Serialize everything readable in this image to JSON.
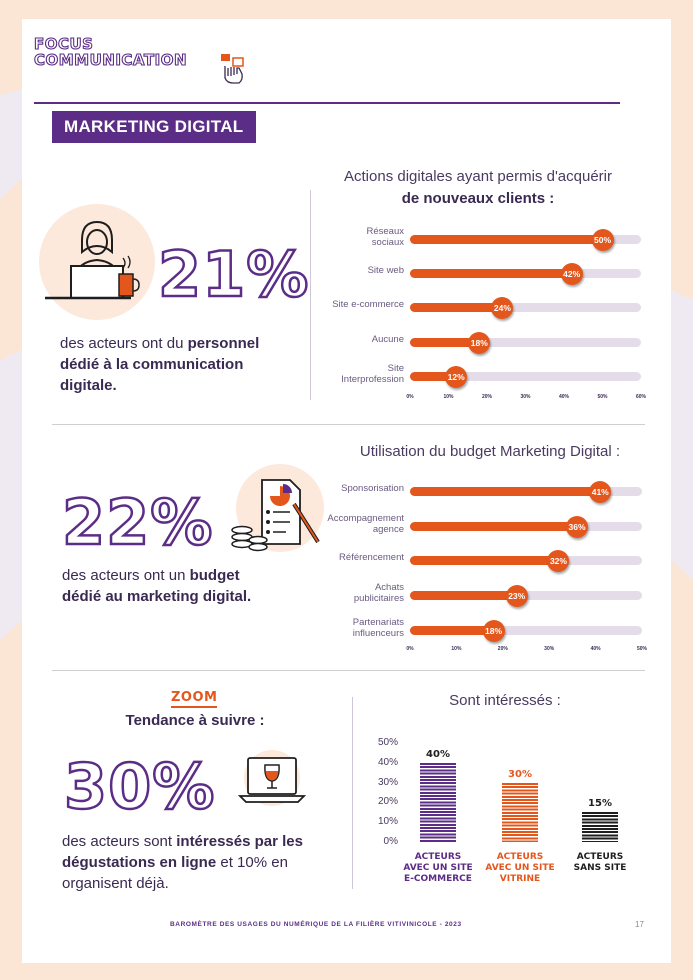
{
  "header": {
    "focus_line1": "FOCUS",
    "focus_line2": "COMMUNICATION"
  },
  "section_badge": "MARKETING DIGITAL",
  "stat1": {
    "value": "21%",
    "text_before": "des acteurs ont du ",
    "text_bold": "personnel dédié à la communication digitale."
  },
  "stat2": {
    "value": "22%",
    "text_before": "des acteurs ont un ",
    "text_bold": "budget dédié au marketing digital."
  },
  "zoom": {
    "label": "ZOOM",
    "subtitle": "Tendance à suivre :"
  },
  "stat3": {
    "value": "30%",
    "text_before": "des acteurs sont ",
    "text_bold": "intéressés par les dégustations en ligne",
    "text_after": " et 10% en organisent déjà."
  },
  "chart_data": [
    {
      "type": "bar",
      "orientation": "horizontal",
      "title_line1": "Actions digitales ayant permis d'acquérir",
      "title_line2": "de nouveaux clients :",
      "categories": [
        [
          "Réseaux",
          "sociaux"
        ],
        [
          "Site web"
        ],
        [
          "Site e-commerce"
        ],
        [
          "Aucune"
        ],
        [
          "Site",
          "Interprofession"
        ]
      ],
      "values": [
        50,
        42,
        24,
        18,
        12
      ],
      "value_labels": [
        "50%",
        "42%",
        "24%",
        "18%",
        "12%"
      ],
      "xlim": [
        0,
        60
      ],
      "x_ticks": [
        "0%",
        "10%",
        "20%",
        "30%",
        "40%",
        "50%",
        "60%"
      ],
      "color": "#e4571c",
      "track_color": "#e4dde9"
    },
    {
      "type": "bar",
      "orientation": "horizontal",
      "title_line1": "Utilisation du budget Marketing Digital :",
      "categories": [
        [
          "Sponsorisation"
        ],
        [
          "Accompagnement",
          "agence"
        ],
        [
          "Référencement"
        ],
        [
          "Achats",
          "publicitaires"
        ],
        [
          "Partenariats",
          "influenceurs"
        ]
      ],
      "values": [
        41,
        36,
        32,
        23,
        18
      ],
      "value_labels": [
        "41%",
        "36%",
        "32%",
        "23%",
        "18%"
      ],
      "xlim": [
        0,
        50
      ],
      "x_ticks": [
        "0%",
        "10%",
        "20%",
        "30%",
        "40%",
        "50%"
      ],
      "color": "#e4571c",
      "track_color": "#e4dde9"
    },
    {
      "type": "bar",
      "orientation": "vertical",
      "title_line1": "Sont intéressés :",
      "categories": [
        [
          "ACTEURS",
          "AVEC UN SITE",
          "E-COMMERCE"
        ],
        [
          "ACTEURS",
          "AVEC UN SITE",
          "VITRINE"
        ],
        [
          "ACTEURS",
          "SANS SITE"
        ]
      ],
      "values": [
        40,
        30,
        15
      ],
      "value_labels": [
        "40%",
        "30%",
        "15%"
      ],
      "colors": [
        "#5b2d86",
        "#e4571c",
        "#1e1e1e"
      ],
      "ylim": [
        0,
        50
      ],
      "y_ticks": [
        "0%",
        "10%",
        "20%",
        "30%",
        "40%",
        "50%"
      ]
    }
  ],
  "footer": {
    "text": "BAROMÈTRE DES USAGES DU NUMÉRIQUE DE LA FILIÈRE VITIVINICOLE - 2023",
    "page_number": "17"
  }
}
